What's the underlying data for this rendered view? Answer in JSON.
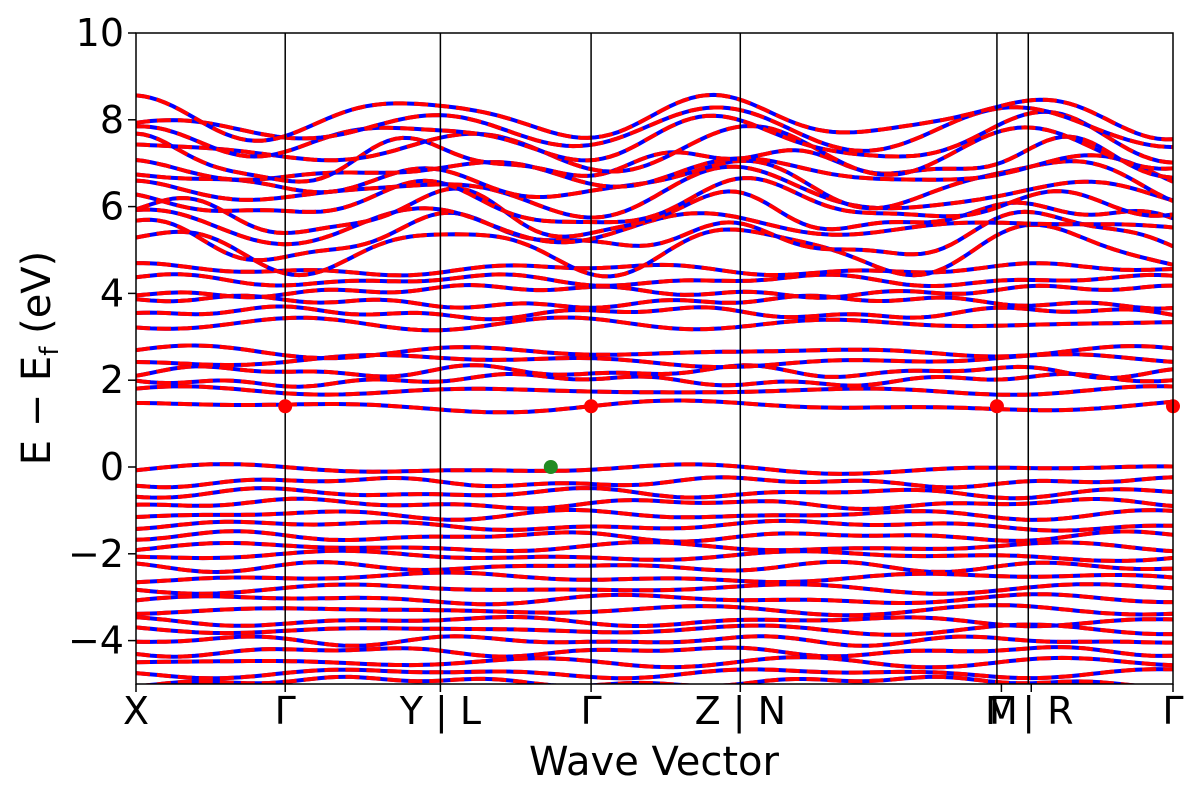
{
  "chart_data": {
    "type": "line",
    "xlabel": "Wave Vector",
    "ylabel_main": "E − E",
    "ylabel_sub": "f",
    "ylabel_unit": " (eV)",
    "ylim": [
      -5,
      10
    ],
    "xlim": [
      0,
      6.95
    ],
    "yticks": [
      {
        "value": -4,
        "label": "−4"
      },
      {
        "value": -2,
        "label": "−2"
      },
      {
        "value": 0,
        "label": "0"
      },
      {
        "value": 2,
        "label": "2"
      },
      {
        "value": 4,
        "label": "4"
      },
      {
        "value": 6,
        "label": "6"
      },
      {
        "value": 8,
        "label": "8"
      },
      {
        "value": 10,
        "label": "10"
      }
    ],
    "kpoint_labels": [
      {
        "x": 0.0,
        "label": "X"
      },
      {
        "x": 1.0,
        "label": "Γ"
      },
      {
        "x": 2.04,
        "label": "Y | L"
      },
      {
        "x": 3.05,
        "label": "Γ"
      },
      {
        "x": 4.05,
        "label": "Z | N"
      },
      {
        "x": 5.8,
        "label": "M"
      },
      {
        "x": 6.0,
        "label": "Γ | R"
      },
      {
        "x": 6.95,
        "label": "Γ"
      }
    ],
    "vlines": [
      1.0,
      2.04,
      3.05,
      4.05,
      5.77,
      5.98
    ],
    "grid": false,
    "series": [
      {
        "style": "solid",
        "color": "#0000ff"
      },
      {
        "style": "dashed",
        "color": "#ff0000"
      }
    ],
    "markers": [
      {
        "x": 1.0,
        "y": 1.4,
        "color": "#ff0000"
      },
      {
        "x": 3.05,
        "y": 1.4,
        "color": "#ff0000"
      },
      {
        "x": 5.77,
        "y": 1.4,
        "color": "#ff0000"
      },
      {
        "x": 6.95,
        "y": 1.4,
        "color": "#ff0000"
      },
      {
        "x": 2.78,
        "y": 0.0,
        "color": "#228b22"
      }
    ],
    "valence_band_levels": [
      -0.05,
      -0.35,
      -0.6,
      -0.85,
      -1.1,
      -1.35,
      -1.6,
      -1.85,
      -2.05,
      -2.3,
      -2.55,
      -2.8,
      -3.05,
      -3.3,
      -3.55,
      -3.75,
      -4.0,
      -4.25,
      -4.5,
      -4.75,
      -4.95
    ],
    "lower_conduction_levels": [
      1.4,
      1.75,
      2.0,
      2.2,
      2.45,
      2.65,
      3.3,
      3.55,
      3.8,
      4.05,
      4.3,
      4.55
    ],
    "upper_conduction_levels": [
      5.0,
      5.3,
      5.55,
      5.8,
      6.05,
      6.3,
      6.55,
      6.8,
      7.05,
      7.3,
      7.55,
      7.8,
      8.05
    ]
  }
}
